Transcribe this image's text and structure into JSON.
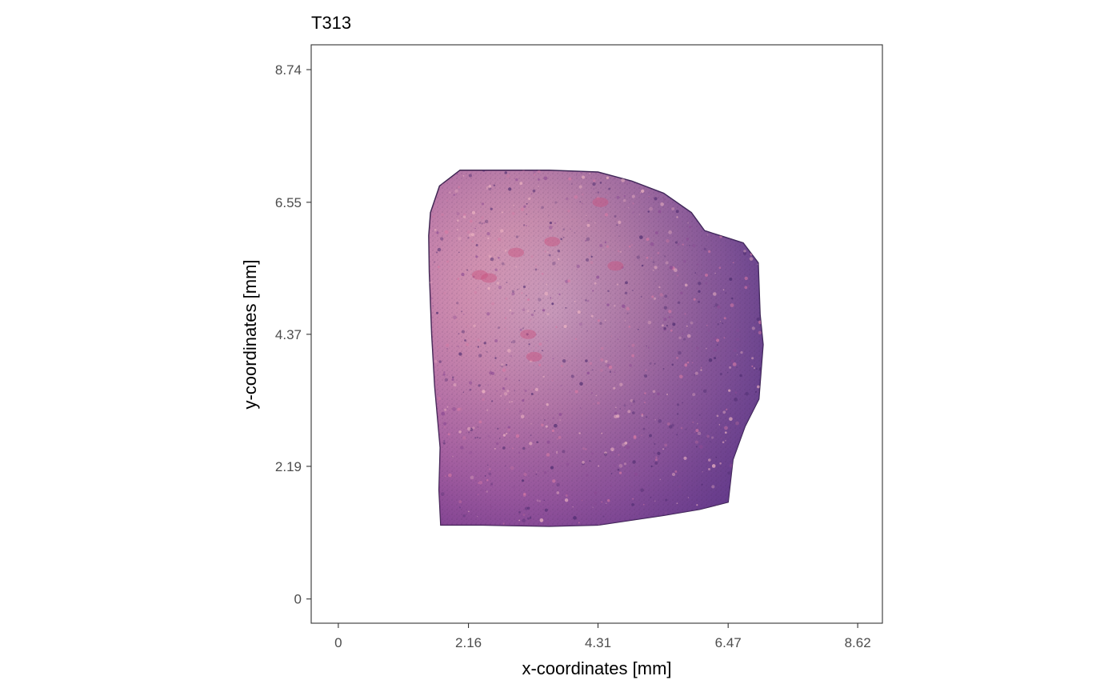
{
  "chart_data": {
    "type": "scatter",
    "title": "T313",
    "xlabel": "x-coordinates [mm]",
    "ylabel": "y-coordinates [mm]",
    "xlim": [
      -0.45,
      9.03
    ],
    "ylim": [
      -0.4,
      9.15
    ],
    "x_ticks": [
      0,
      2.16,
      4.31,
      6.47,
      8.62
    ],
    "x_tick_labels": [
      "0",
      "2.16",
      "4.31",
      "6.47",
      "8.62"
    ],
    "y_ticks": [
      0,
      2.19,
      4.37,
      6.55,
      8.74
    ],
    "y_tick_labels": [
      "0",
      "2.19",
      "4.37",
      "6.55",
      "8.74"
    ],
    "grid": false,
    "background_image": "H&E stained tissue section",
    "tissue_outline_mm": [
      [
        1.53,
        6.38
      ],
      [
        1.68,
        6.82
      ],
      [
        2.02,
        7.08
      ],
      [
        3.5,
        7.08
      ],
      [
        4.31,
        7.05
      ],
      [
        4.87,
        6.9
      ],
      [
        5.4,
        6.7
      ],
      [
        5.86,
        6.38
      ],
      [
        6.08,
        6.08
      ],
      [
        6.4,
        5.98
      ],
      [
        6.72,
        5.88
      ],
      [
        6.97,
        5.55
      ],
      [
        7.0,
        4.7
      ],
      [
        7.05,
        4.2
      ],
      [
        6.98,
        3.3
      ],
      [
        6.75,
        2.85
      ],
      [
        6.55,
        2.3
      ],
      [
        6.47,
        1.6
      ],
      [
        6.0,
        1.48
      ],
      [
        5.4,
        1.38
      ],
      [
        4.31,
        1.22
      ],
      [
        3.5,
        1.2
      ],
      [
        2.4,
        1.22
      ],
      [
        1.7,
        1.22
      ],
      [
        1.67,
        1.8
      ],
      [
        1.69,
        2.5
      ],
      [
        1.6,
        3.5
      ],
      [
        1.55,
        4.37
      ],
      [
        1.51,
        5.4
      ],
      [
        1.5,
        6.0
      ]
    ],
    "colors": {
      "tissue_light": "#f2b9c4",
      "tissue_pink": "#d77aa4",
      "tissue_purple": "#8a4a93",
      "tissue_dark": "#4b2a6e",
      "panel_border": "#333333",
      "tick_color": "#333333"
    }
  }
}
